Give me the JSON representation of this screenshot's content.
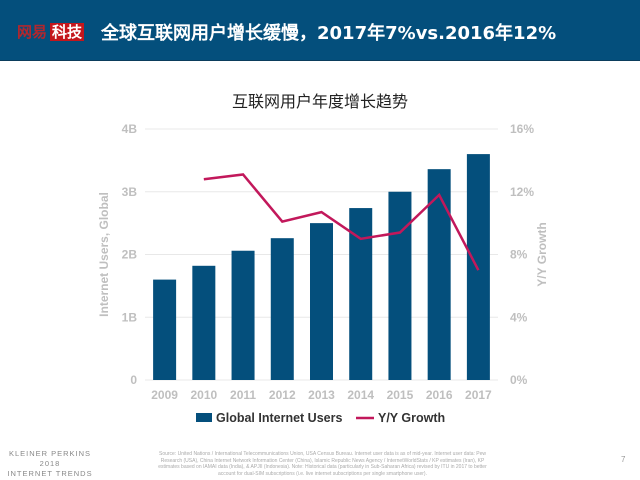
{
  "header": {
    "logo_part1": "网易",
    "logo_part2": "科技",
    "title": "全球互联网用户增长缓慢，2017年7%vs.2016年12%"
  },
  "colors": {
    "header_bg": "#044f7c",
    "bar": "#044f7c",
    "line": "#c2185b"
  },
  "chart_data": {
    "type": "bar+line",
    "title": "互联网用户年度增长趋势",
    "categories": [
      "2009",
      "2010",
      "2011",
      "2012",
      "2013",
      "2014",
      "2015",
      "2016",
      "2017"
    ],
    "series": [
      {
        "name": "Global Internet Users",
        "type": "bar",
        "axis": "left",
        "values": [
          1.6,
          1.82,
          2.06,
          2.26,
          2.5,
          2.74,
          3.0,
          3.36,
          3.6
        ]
      },
      {
        "name": "Y/Y Growth",
        "type": "line",
        "axis": "right",
        "values": [
          null,
          12.8,
          13.1,
          10.1,
          10.7,
          9.0,
          9.4,
          11.8,
          7.0
        ]
      }
    ],
    "ylabel": "Internet Users, Global",
    "ylabel_right": "Y/Y Growth",
    "ylim": [
      0,
      4
    ],
    "yticks": [
      "0",
      "1B",
      "2B",
      "3B",
      "4B"
    ],
    "ylim_right": [
      0,
      16
    ],
    "yticks_right": [
      "0%",
      "4%",
      "8%",
      "12%",
      "16%"
    ],
    "grid": true,
    "legend": "bottom"
  },
  "footer": {
    "brand_line1": "KLEINER PERKINS",
    "brand_line2": "2018",
    "brand_line3": "INTERNET TRENDS",
    "source": "Source: United Nations / International Telecommunications Union, USA Census Bureau. Internet user data is as of mid-year. Internet user data: Pew Research (USA), China Internet Network Information Center (China), Islamic Republic News Agency / InternetWorldStats / KP estimates (Iran), KP estimates based on IAMAI data (India), & APJII (Indonesia). Note: Historical data (particularly in Sub-Saharan Africa) revised by ITU in 2017 to better account for dual-SIM subscriptions (i.e. live internet subscriptions per single smartphone user).",
    "page": "7"
  }
}
